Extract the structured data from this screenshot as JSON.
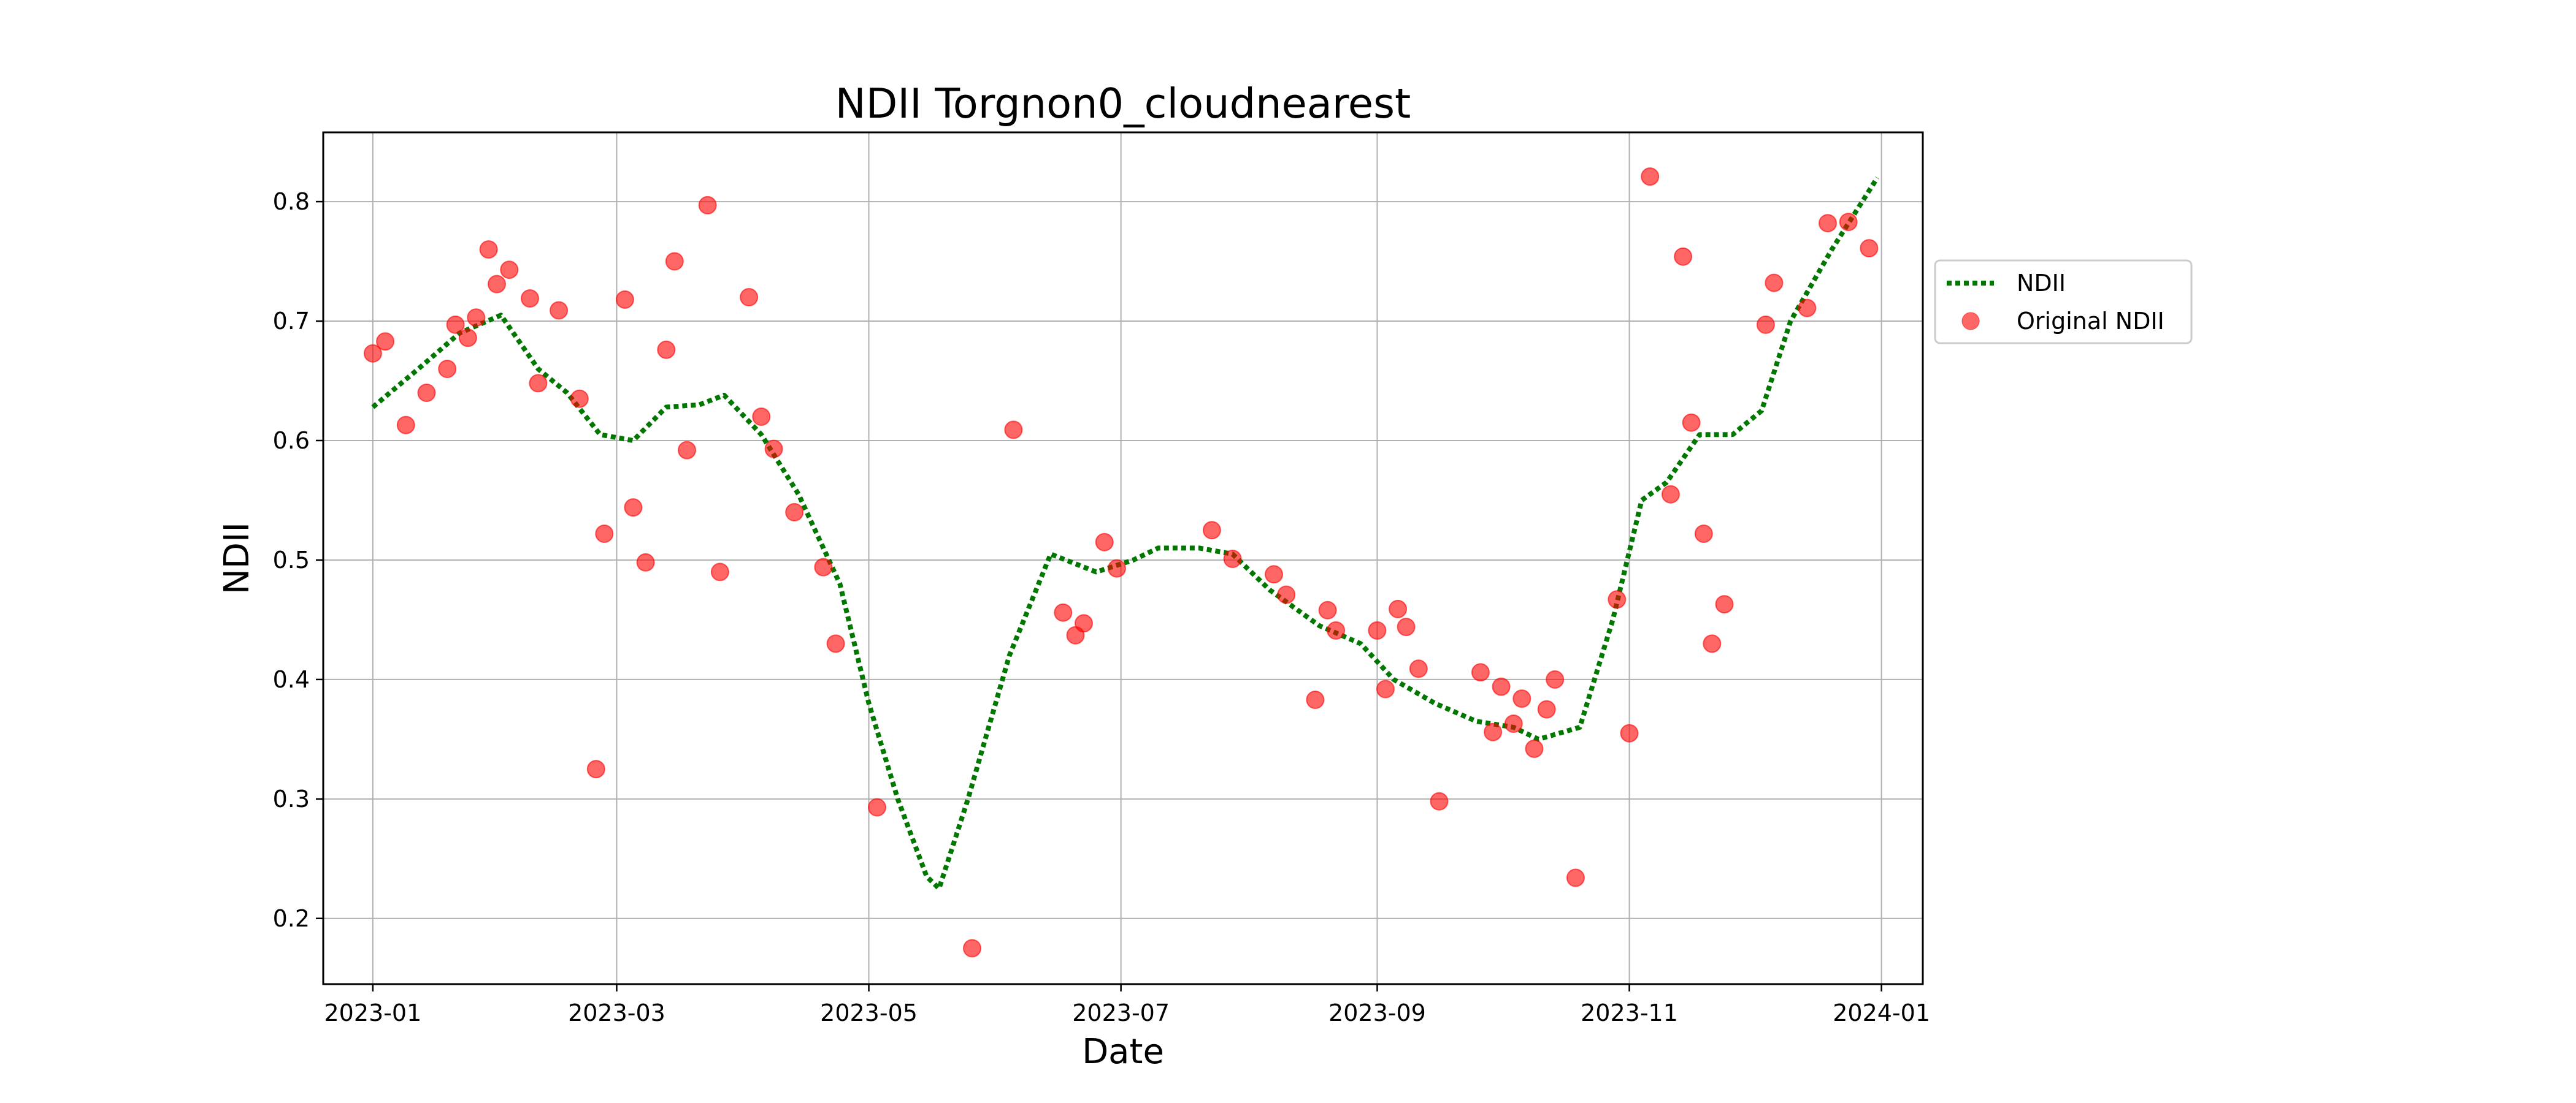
{
  "chart_data": {
    "type": "scatter",
    "title": "NDII Torgnon0_cloudnearest",
    "xlabel": "Date",
    "ylabel": "NDII",
    "xlim": [
      "2022-12-20",
      "2024-01-11"
    ],
    "ylim": [
      0.145,
      0.858
    ],
    "x_ticks": [
      "2023-01",
      "2023-03",
      "2023-05",
      "2023-07",
      "2023-09",
      "2023-11",
      "2024-01"
    ],
    "y_ticks": [
      "0.2",
      "0.3",
      "0.4",
      "0.5",
      "0.6",
      "0.7",
      "0.8"
    ],
    "grid": true,
    "legend": {
      "position": "outside-right",
      "entries": [
        "NDII",
        "Original NDII"
      ]
    },
    "colors": {
      "line": "#007800",
      "points": "#ff0000"
    },
    "series": [
      {
        "name": "NDII",
        "style": "dotted-line",
        "x": [
          "2023-01-01",
          "2023-01-12",
          "2023-01-22",
          "2023-02-01",
          "2023-02-10",
          "2023-02-17",
          "2023-02-25",
          "2023-03-05",
          "2023-03-13",
          "2023-03-21",
          "2023-03-27",
          "2023-04-05",
          "2023-04-14",
          "2023-04-24",
          "2023-05-01",
          "2023-05-08",
          "2023-05-15",
          "2023-05-18",
          "2023-05-25",
          "2023-06-04",
          "2023-06-14",
          "2023-06-25",
          "2023-07-04",
          "2023-07-10",
          "2023-07-20",
          "2023-07-28",
          "2023-08-06",
          "2023-08-18",
          "2023-08-28",
          "2023-09-05",
          "2023-09-15",
          "2023-09-25",
          "2023-10-04",
          "2023-10-10",
          "2023-10-20",
          "2023-10-28",
          "2023-11-04",
          "2023-11-10",
          "2023-11-18",
          "2023-11-26",
          "2023-12-03",
          "2023-12-10",
          "2023-12-20",
          "2023-12-31"
        ],
        "y": [
          0.628,
          0.66,
          0.69,
          0.705,
          0.66,
          0.64,
          0.605,
          0.6,
          0.628,
          0.63,
          0.638,
          0.605,
          0.555,
          0.48,
          0.38,
          0.3,
          0.235,
          0.225,
          0.3,
          0.42,
          0.505,
          0.49,
          0.5,
          0.51,
          0.51,
          0.505,
          0.475,
          0.445,
          0.43,
          0.4,
          0.38,
          0.365,
          0.36,
          0.35,
          0.36,
          0.45,
          0.55,
          0.565,
          0.605,
          0.605,
          0.625,
          0.7,
          0.76,
          0.82
        ]
      },
      {
        "name": "Original NDII",
        "style": "markers",
        "x": [
          "2023-01-01",
          "2023-01-04",
          "2023-01-09",
          "2023-01-14",
          "2023-01-19",
          "2023-01-21",
          "2023-01-24",
          "2023-01-26",
          "2023-01-29",
          "2023-01-31",
          "2023-02-03",
          "2023-02-08",
          "2023-02-10",
          "2023-02-15",
          "2023-02-20",
          "2023-02-24",
          "2023-02-26",
          "2023-03-03",
          "2023-03-05",
          "2023-03-08",
          "2023-03-13",
          "2023-03-15",
          "2023-03-18",
          "2023-03-23",
          "2023-03-26",
          "2023-04-02",
          "2023-04-05",
          "2023-04-08",
          "2023-04-13",
          "2023-04-20",
          "2023-04-23",
          "2023-05-03",
          "2023-05-26",
          "2023-06-05",
          "2023-06-17",
          "2023-06-20",
          "2023-06-22",
          "2023-06-27",
          "2023-06-30",
          "2023-07-23",
          "2023-07-28",
          "2023-08-07",
          "2023-08-10",
          "2023-08-17",
          "2023-08-20",
          "2023-08-22",
          "2023-09-01",
          "2023-09-03",
          "2023-09-06",
          "2023-09-08",
          "2023-09-11",
          "2023-09-16",
          "2023-09-26",
          "2023-09-29",
          "2023-10-01",
          "2023-10-04",
          "2023-10-06",
          "2023-10-09",
          "2023-10-12",
          "2023-10-14",
          "2023-10-19",
          "2023-10-29",
          "2023-11-01",
          "2023-11-06",
          "2023-11-11",
          "2023-11-14",
          "2023-11-16",
          "2023-11-19",
          "2023-11-21",
          "2023-11-24",
          "2023-12-04",
          "2023-12-06",
          "2023-12-14",
          "2023-12-19",
          "2023-12-24",
          "2023-12-29"
        ],
        "y": [
          0.673,
          0.683,
          0.613,
          0.64,
          0.66,
          0.697,
          0.686,
          0.703,
          0.76,
          0.731,
          0.743,
          0.719,
          0.648,
          0.709,
          0.635,
          0.325,
          0.522,
          0.718,
          0.544,
          0.498,
          0.676,
          0.75,
          0.592,
          0.797,
          0.49,
          0.72,
          0.62,
          0.593,
          0.54,
          0.494,
          0.43,
          0.293,
          0.175,
          0.609,
          0.456,
          0.437,
          0.447,
          0.515,
          0.493,
          0.525,
          0.501,
          0.488,
          0.471,
          0.383,
          0.458,
          0.441,
          0.441,
          0.392,
          0.459,
          0.444,
          0.409,
          0.298,
          0.406,
          0.356,
          0.394,
          0.363,
          0.384,
          0.342,
          0.375,
          0.4,
          0.234,
          0.467,
          0.355,
          0.821,
          0.555,
          0.754,
          0.615,
          0.522,
          0.43,
          0.463,
          0.697,
          0.732,
          0.711,
          0.782,
          0.783,
          0.761
        ]
      }
    ]
  }
}
